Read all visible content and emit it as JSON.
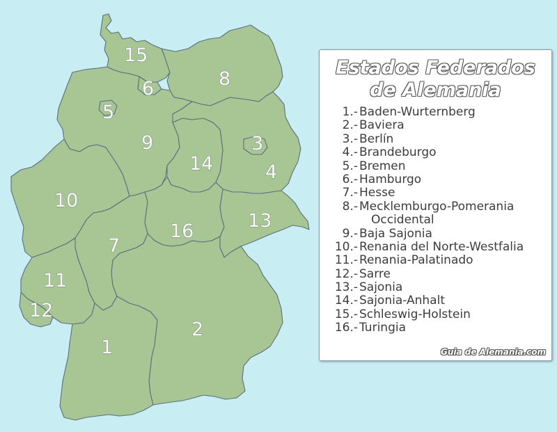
{
  "legend": {
    "title_line1": "Estados Federados",
    "title_line2": "de Alemania",
    "credit": "Guia de Alemania.com",
    "items": [
      {
        "num": "1.-",
        "name": "Baden-Wurternberg"
      },
      {
        "num": "2.-",
        "name": "Baviera"
      },
      {
        "num": "3.-",
        "name": "Berlín"
      },
      {
        "num": "4.-",
        "name": "Brandeburgo"
      },
      {
        "num": "5.-",
        "name": "Bremen"
      },
      {
        "num": "6.-",
        "name": "Hamburgo"
      },
      {
        "num": "7.-",
        "name": "Hesse"
      },
      {
        "num": "8.-",
        "name": "Mecklemburgo-Pomerania"
      },
      {
        "num": "",
        "name": "Occidental"
      },
      {
        "num": "9.-",
        "name": "Baja Sajonia"
      },
      {
        "num": "10.-",
        "name": "Renania del Norte-Westfalia"
      },
      {
        "num": "11.-",
        "name": "Renania-Palatinado"
      },
      {
        "num": "12.-",
        "name": "Sarre"
      },
      {
        "num": "13.-",
        "name": "Sajonia"
      },
      {
        "num": "14.-",
        "name": "Sajonia-Anhalt"
      },
      {
        "num": "15.-",
        "name": "Schleswig-Holstein"
      },
      {
        "num": "16.-",
        "name": "Turingia"
      }
    ]
  },
  "map": {
    "state_labels": [
      "1",
      "2",
      "3",
      "4",
      "5",
      "6",
      "7",
      "8",
      "9",
      "10",
      "11",
      "12",
      "13",
      "14",
      "15",
      "16"
    ]
  },
  "colors": {
    "sea": "#c8eef4",
    "land": "#a7c694",
    "border": "#5a6e7e"
  }
}
